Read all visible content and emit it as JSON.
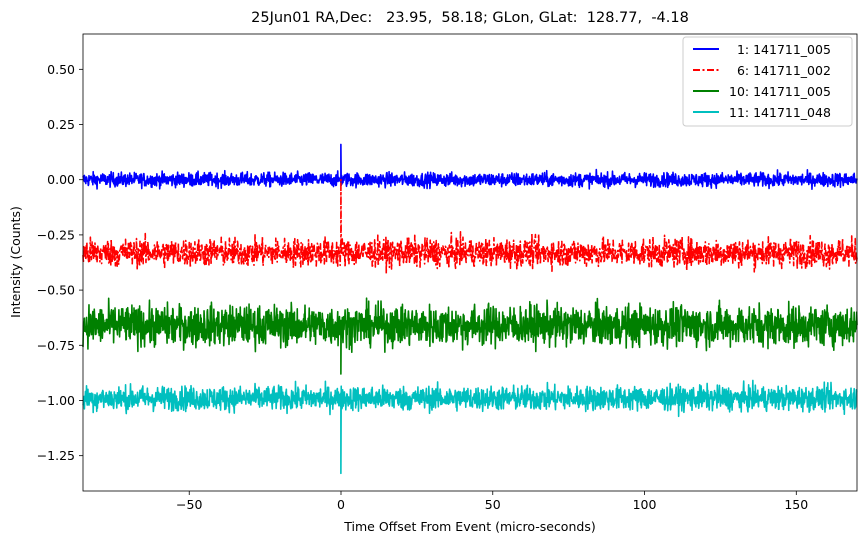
{
  "chart_data": {
    "type": "line",
    "title": "25Jun01 RA,Dec:   23.95,  58.18; GLon, GLat:  128.77,  -4.18",
    "xlabel": "Time Offset From Event (micro-seconds)",
    "ylabel": "Intensity (Counts)",
    "xlim": [
      -85,
      170
    ],
    "ylim": [
      -1.41,
      0.66
    ],
    "xticks": [
      -50,
      0,
      50,
      100,
      150
    ],
    "xtick_labels": [
      "−50",
      "0",
      "50",
      "100",
      "150"
    ],
    "yticks": [
      0.5,
      0.25,
      0.0,
      -0.25,
      -0.5,
      -0.75,
      -1.0,
      -1.25
    ],
    "ytick_labels": [
      "0.50",
      "0.25",
      "0.00",
      "−0.25",
      "−0.50",
      "−0.75",
      "−1.00",
      "−1.25"
    ],
    "legend_position": "top-right",
    "series": [
      {
        "name": "1: 141711_005",
        "label": "  1: 141711_005",
        "color": "#0000ff",
        "style": "solid",
        "baseline": 0.0,
        "noise_amp": 0.035,
        "spike_value": 0.16
      },
      {
        "name": "6: 141711_002",
        "label": "  6: 141711_002",
        "color": "#ff0000",
        "style": "dashdot",
        "baseline": -0.33,
        "noise_amp": 0.07,
        "spike_value": 0.0
      },
      {
        "name": "10: 141711_005",
        "label": "10: 141711_005",
        "color": "#008000",
        "style": "solid",
        "baseline": -0.66,
        "noise_amp": 0.1,
        "spike_value": -0.88
      },
      {
        "name": "11: 141711_048",
        "label": "11: 141711_048",
        "color": "#00bfbf",
        "style": "solid",
        "baseline": -0.99,
        "noise_amp": 0.06,
        "spike_value": -1.33
      }
    ]
  }
}
